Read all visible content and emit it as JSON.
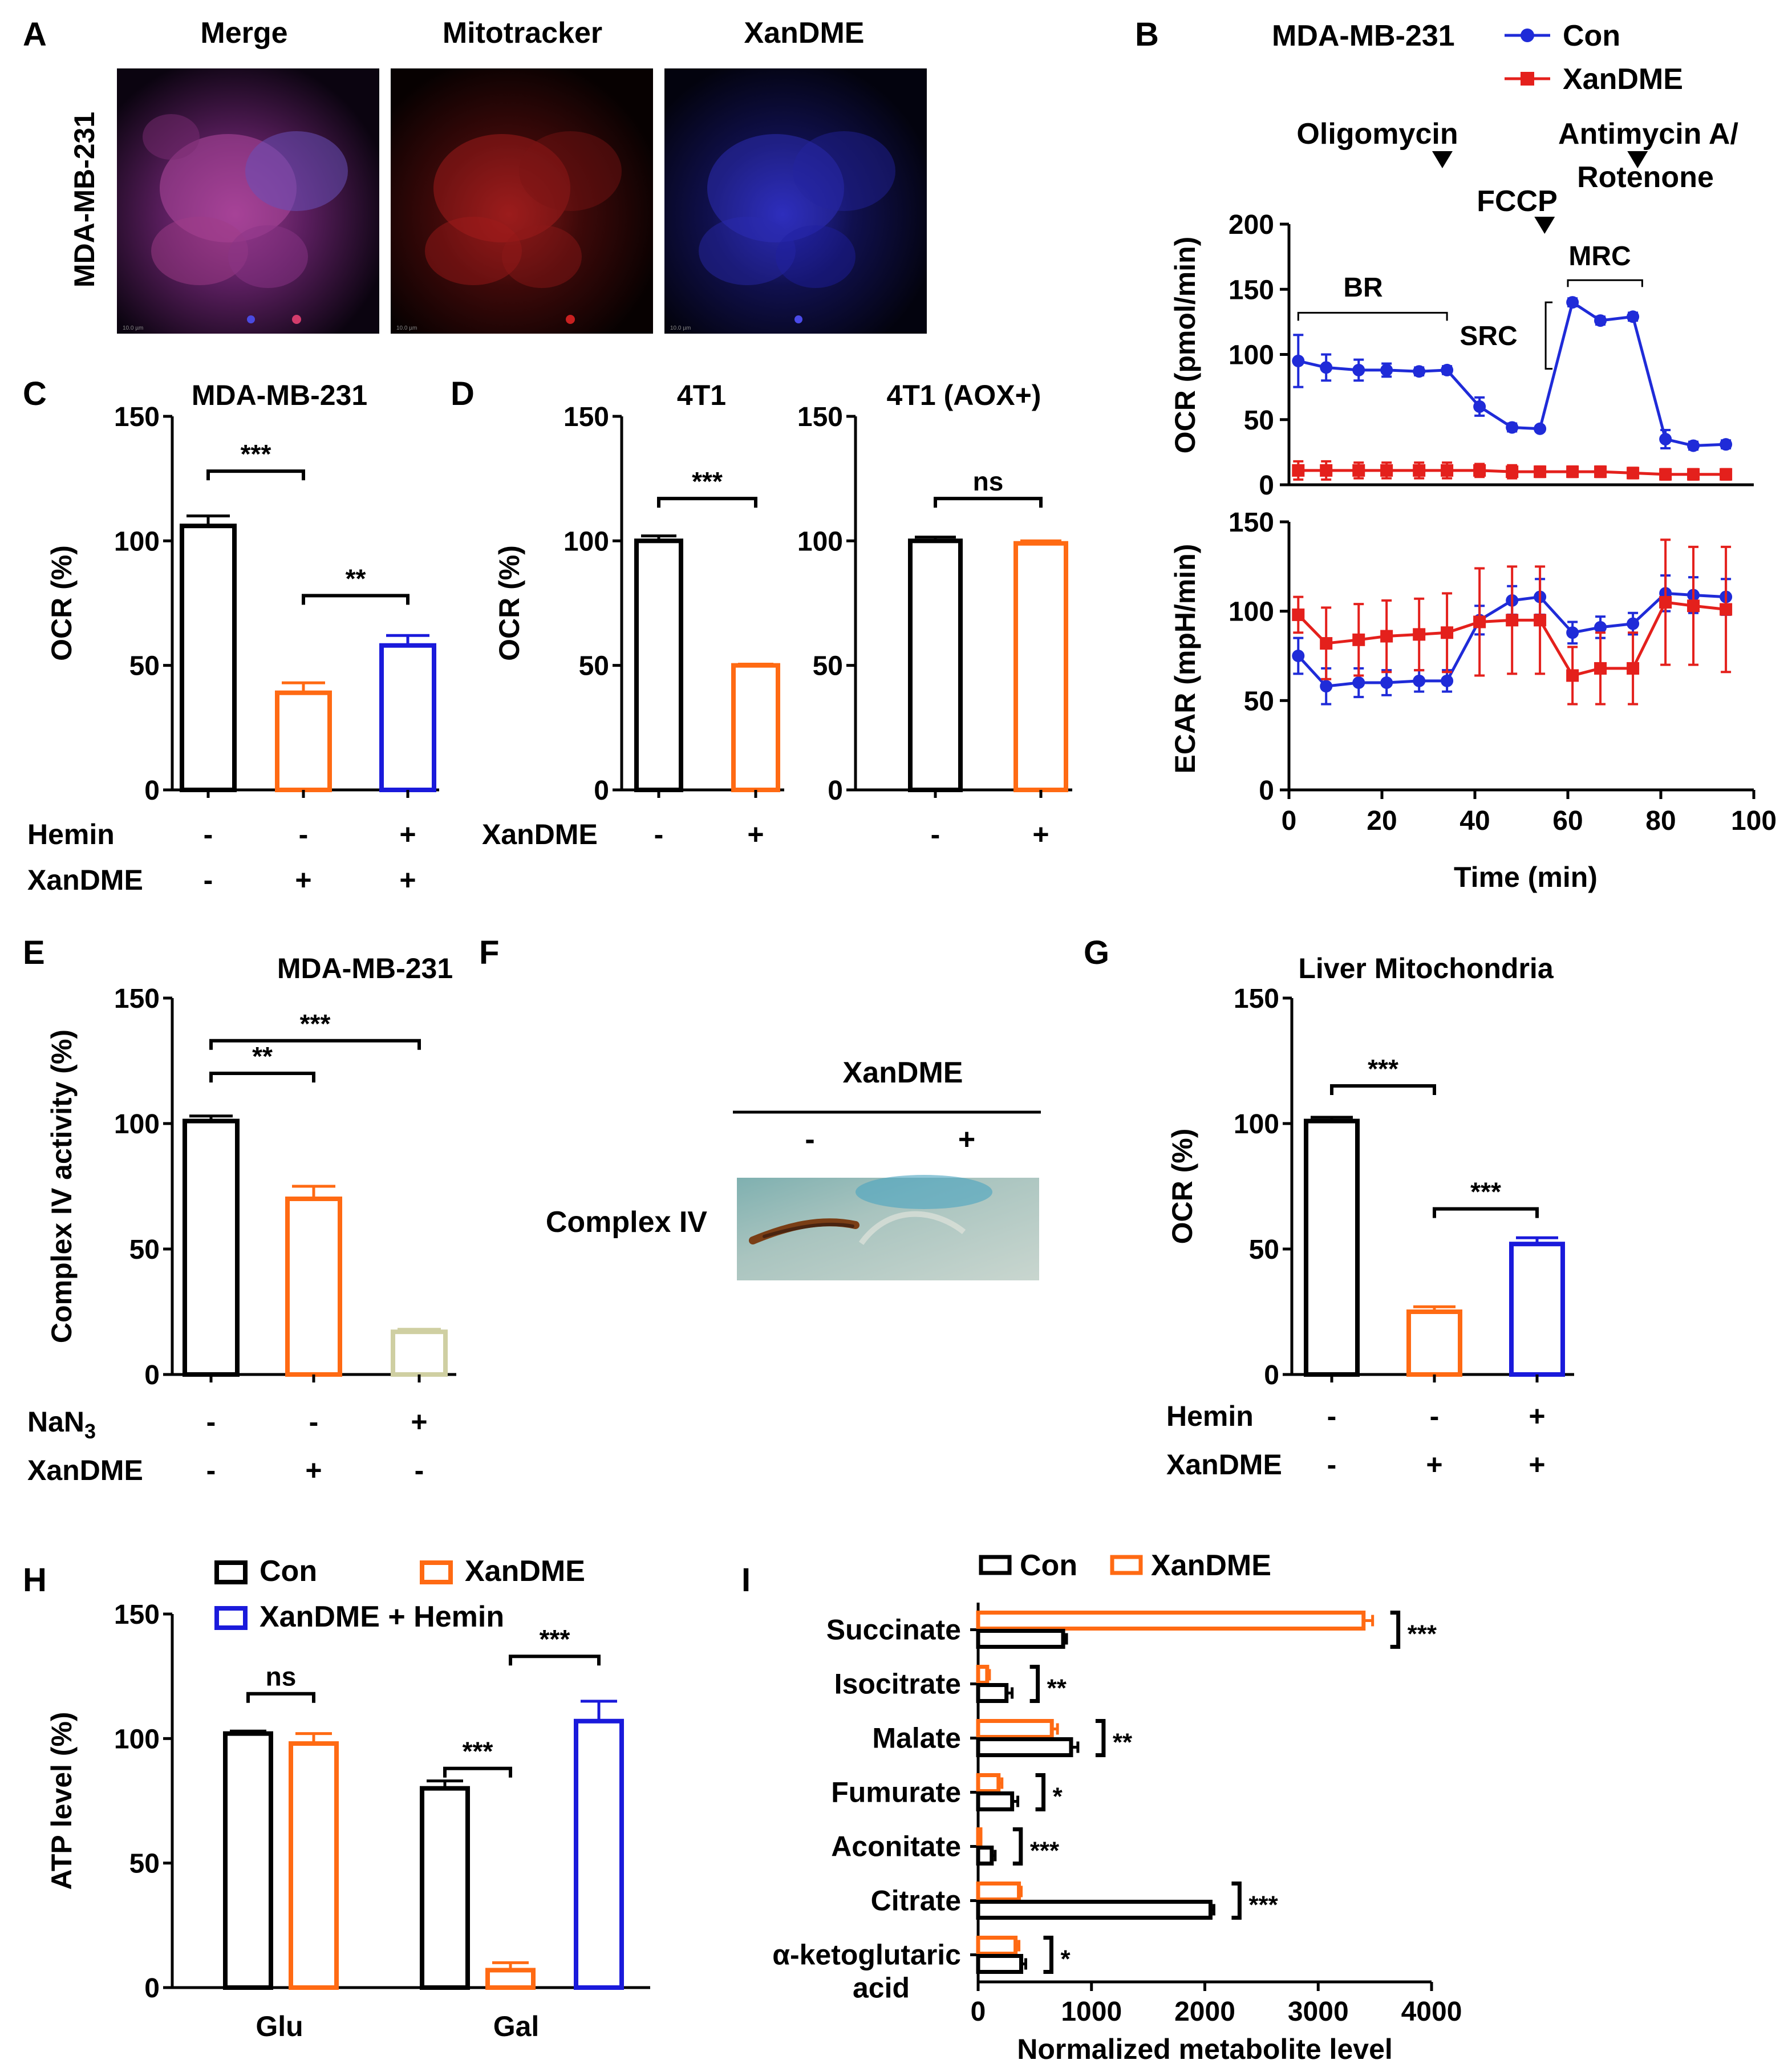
{
  "colors": {
    "con": "#000000",
    "xandme": "#ff6a13",
    "hemin": "#1a1adb",
    "nan3": "#cfcfa2",
    "series_con": "#1f2bd8",
    "series_xan": "#e4201c"
  },
  "panel_letters": [
    "A",
    "B",
    "C",
    "D",
    "E",
    "F",
    "G",
    "H",
    "I"
  ],
  "panel_a": {
    "row_label": "MDA-MB-231",
    "titles": [
      "Merge",
      "Mitotracker",
      "XanDME"
    ],
    "scale_text": "10.0 µm"
  },
  "chart_data": [
    {
      "id": "B-OCR",
      "type": "line",
      "title": "MDA-MB-231",
      "xlabel": "Time (min)",
      "ylabel": "OCR (pmol/min)",
      "ylim": [
        0,
        200
      ],
      "xlim": [
        0,
        100
      ],
      "yticks": [
        "0",
        "50",
        "100",
        "150",
        "200"
      ],
      "xticks": [
        "0",
        "20",
        "40",
        "60",
        "80",
        "100"
      ],
      "legend": [
        "Con",
        "XanDME"
      ],
      "injections": [
        {
          "label": "Oligomycin",
          "x": 33
        },
        {
          "label": "FCCP",
          "x": 55
        },
        {
          "label": "Antimycin A/",
          "label2": "Rotenone",
          "x": 75
        }
      ],
      "annotations": [
        "BR",
        "SRC",
        "MRC"
      ],
      "series": [
        {
          "name": "Con",
          "x": [
            2,
            8,
            15,
            21,
            28,
            34,
            41,
            48,
            54,
            61,
            67,
            74,
            81,
            87,
            94
          ],
          "values": [
            95,
            90,
            88,
            88,
            87,
            88,
            60,
            44,
            43,
            140,
            126,
            129,
            35,
            30,
            31
          ],
          "err": [
            20,
            10,
            8,
            5,
            3,
            3,
            7,
            3,
            2,
            3,
            3,
            3,
            7,
            3,
            3
          ]
        },
        {
          "name": "XanDME",
          "x": [
            2,
            8,
            15,
            21,
            28,
            34,
            41,
            48,
            54,
            61,
            67,
            74,
            81,
            87,
            94
          ],
          "values": [
            11,
            11,
            11,
            11,
            11,
            11,
            11,
            10,
            10,
            10,
            10,
            9,
            8,
            8,
            8
          ],
          "err": [
            7,
            7,
            6,
            6,
            6,
            6,
            5,
            5,
            4,
            4,
            4,
            4,
            4,
            4,
            4
          ]
        }
      ]
    },
    {
      "id": "B-ECAR",
      "type": "line",
      "xlabel": "Time (min)",
      "ylabel": "ECAR (mpH/min)",
      "ylim": [
        0,
        150
      ],
      "xlim": [
        0,
        100
      ],
      "yticks": [
        "0",
        "50",
        "100",
        "150"
      ],
      "xticks": [
        "0",
        "20",
        "40",
        "60",
        "80",
        "100"
      ],
      "series": [
        {
          "name": "Con",
          "x": [
            2,
            8,
            15,
            21,
            28,
            34,
            41,
            48,
            54,
            61,
            67,
            74,
            81,
            87,
            94
          ],
          "values": [
            75,
            58,
            60,
            60,
            61,
            61,
            95,
            106,
            108,
            88,
            91,
            93,
            110,
            109,
            108
          ],
          "err": [
            10,
            10,
            8,
            7,
            6,
            6,
            8,
            8,
            10,
            6,
            6,
            6,
            10,
            10,
            10
          ]
        },
        {
          "name": "XanDME",
          "x": [
            2,
            8,
            15,
            21,
            28,
            34,
            41,
            48,
            54,
            61,
            67,
            74,
            81,
            87,
            94
          ],
          "values": [
            98,
            82,
            84,
            86,
            87,
            88,
            94,
            95,
            95,
            64,
            68,
            68,
            105,
            103,
            101
          ],
          "err": [
            10,
            20,
            20,
            20,
            20,
            22,
            30,
            30,
            30,
            16,
            20,
            20,
            35,
            33,
            35
          ]
        }
      ]
    },
    {
      "id": "C",
      "type": "bar",
      "title": "MDA-MB-231",
      "ylabel": "OCR (%)",
      "ylim": [
        0,
        150
      ],
      "yticks": [
        "0",
        "50",
        "100",
        "150"
      ],
      "values": [
        106,
        39,
        58
      ],
      "err": [
        4,
        4,
        4
      ],
      "bar_colors": [
        "con",
        "xandme",
        "hemin"
      ],
      "row_labels": [
        "Hemin",
        "XanDME"
      ],
      "rows": [
        [
          "-",
          "-",
          "+"
        ],
        [
          "-",
          "+",
          "+"
        ]
      ],
      "significance": [
        {
          "from": 0,
          "to": 1,
          "y": 128,
          "label": "***"
        },
        {
          "from": 1,
          "to": 2,
          "y": 78,
          "label": "**"
        }
      ]
    },
    {
      "id": "D1",
      "type": "bar",
      "title": "4T1",
      "ylabel": "OCR (%)",
      "ylim": [
        0,
        150
      ],
      "yticks": [
        "0",
        "50",
        "100",
        "150"
      ],
      "values": [
        100,
        50
      ],
      "err": [
        2,
        0.5
      ],
      "bar_colors": [
        "con",
        "xandme"
      ],
      "row_labels": [
        "XanDME"
      ],
      "rows": [
        [
          "-",
          "+"
        ]
      ],
      "significance": [
        {
          "from": 0,
          "to": 1,
          "y": 117,
          "label": "***"
        }
      ]
    },
    {
      "id": "D2",
      "type": "bar",
      "title": "4T1 (AOX+)",
      "ylim": [
        0,
        150
      ],
      "yticks": [
        "0",
        "50",
        "100",
        "150"
      ],
      "values": [
        100,
        99
      ],
      "err": [
        1.5,
        1
      ],
      "bar_colors": [
        "con",
        "xandme"
      ],
      "row_labels": [],
      "rows": [
        [
          "-",
          "+"
        ]
      ],
      "significance": [
        {
          "from": 0,
          "to": 1,
          "y": 117,
          "label": "ns"
        }
      ]
    },
    {
      "id": "E",
      "type": "bar",
      "title": "MDA-MB-231",
      "ylabel": "Complex IV activity (%)",
      "ylim": [
        0,
        150
      ],
      "yticks": [
        "0",
        "50",
        "100",
        "150"
      ],
      "values": [
        101,
        70,
        17
      ],
      "err": [
        2,
        5,
        1
      ],
      "bar_colors": [
        "con",
        "xandme",
        "nan3"
      ],
      "row_labels": [
        "NaN3",
        "XanDME"
      ],
      "rows": [
        [
          "-",
          "-",
          "+"
        ],
        [
          "-",
          "+",
          "-"
        ]
      ],
      "significance": [
        {
          "from": 0,
          "to": 1,
          "y": 120,
          "label": "**"
        },
        {
          "from": 0,
          "to": 2,
          "y": 133,
          "label": "***"
        }
      ]
    },
    {
      "id": "G",
      "type": "bar",
      "title": "Liver Mitochondria",
      "ylabel": "OCR (%)",
      "ylim": [
        0,
        150
      ],
      "yticks": [
        "0",
        "50",
        "100",
        "150"
      ],
      "values": [
        101,
        25,
        52
      ],
      "err": [
        1.5,
        2,
        2.5
      ],
      "bar_colors": [
        "con",
        "xandme",
        "hemin"
      ],
      "row_labels": [
        "Hemin",
        "XanDME"
      ],
      "rows": [
        [
          "-",
          "-",
          "+"
        ],
        [
          "-",
          "+",
          "+"
        ]
      ],
      "significance": [
        {
          "from": 0,
          "to": 1,
          "y": 115,
          "label": "***"
        },
        {
          "from": 1,
          "to": 2,
          "y": 66,
          "label": "***"
        }
      ]
    },
    {
      "id": "H",
      "type": "bar",
      "ylabel": "ATP level (%)",
      "ylim": [
        0,
        150
      ],
      "yticks": [
        "0",
        "50",
        "100",
        "150"
      ],
      "categories": [
        "Glu",
        "Gal"
      ],
      "legend": [
        "Con",
        "XanDME",
        "XanDME + Hemin"
      ],
      "series": [
        {
          "name": "Con",
          "values": [
            102,
            80
          ],
          "err": [
            1,
            3
          ]
        },
        {
          "name": "XanDME",
          "values": [
            98,
            7
          ],
          "err": [
            4,
            3
          ]
        },
        {
          "name": "XanDME + Hemin",
          "values": [
            null,
            107
          ],
          "err": [
            null,
            8
          ]
        }
      ],
      "significance": [
        {
          "label": "ns"
        },
        {
          "label": "***"
        },
        {
          "label": "***"
        }
      ]
    },
    {
      "id": "I",
      "type": "bar",
      "orientation": "horizontal",
      "xlabel": "Normalized metabolite level",
      "xlim": [
        0,
        4000
      ],
      "xticks": [
        "0",
        "1000",
        "2000",
        "3000",
        "4000"
      ],
      "legend": [
        "Con",
        "XanDME"
      ],
      "categories": [
        "Succinate",
        "Isocitrate",
        "Malate",
        "Fumurate",
        "Aconitate",
        "Citrate",
        "α-ketoglutaric acid"
      ],
      "category_lines": [
        [
          "Succinate"
        ],
        [
          "Isocitrate"
        ],
        [
          "Malate"
        ],
        [
          "Fumurate"
        ],
        [
          "Aconitate"
        ],
        [
          "Citrate"
        ],
        [
          "α-ketoglutaric",
          "acid"
        ]
      ],
      "series": [
        {
          "name": "Con",
          "values": [
            750,
            250,
            820,
            300,
            120,
            2050,
            380
          ],
          "err": [
            30,
            50,
            60,
            50,
            30,
            30,
            40
          ]
        },
        {
          "name": "XanDME",
          "values": [
            3400,
            80,
            650,
            180,
            20,
            360,
            330
          ],
          "err": [
            80,
            20,
            50,
            30,
            5,
            20,
            30
          ]
        }
      ],
      "significance": [
        "***",
        "**",
        "**",
        "*",
        "***",
        "***",
        "*"
      ]
    }
  ],
  "panel_f": {
    "header": "XanDME",
    "signs": [
      "-",
      "+"
    ],
    "row_label": "Complex IV"
  }
}
